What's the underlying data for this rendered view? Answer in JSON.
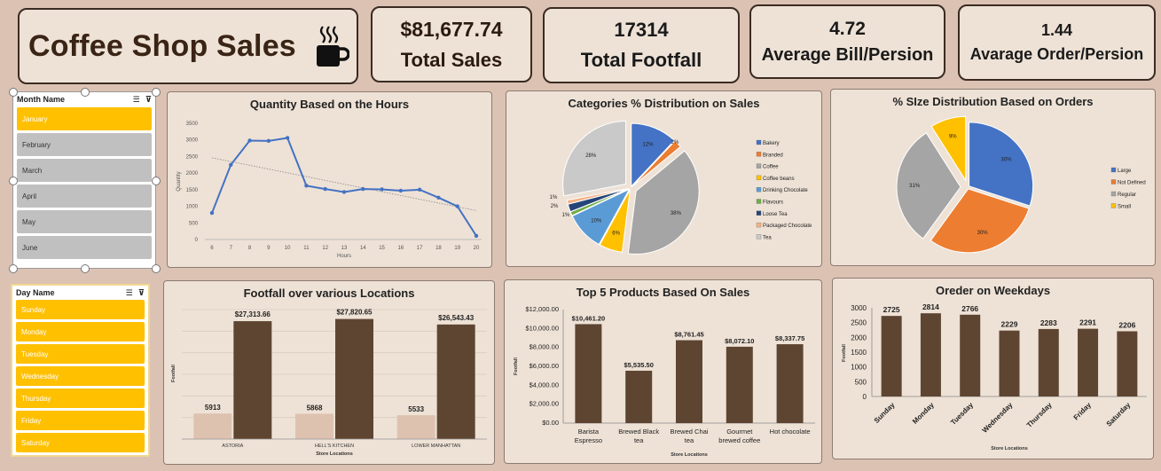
{
  "header": {
    "title": "Coffee Shop Sales",
    "icon": "coffee-cup-icon"
  },
  "kpis": [
    {
      "value": "$81,677.74",
      "label": "Total Sales"
    },
    {
      "value": "17314",
      "label": "Total Footfall"
    },
    {
      "value": "4.72",
      "label": "Average Bill/Persion"
    },
    {
      "value": "1.44",
      "label": "Avarage Order/Persion"
    }
  ],
  "month_slicer": {
    "title": "Month Name",
    "items": [
      "January",
      "February",
      "March",
      "April",
      "May",
      "June"
    ],
    "selected": [
      "January"
    ]
  },
  "day_slicer": {
    "title": "Day Name",
    "items": [
      "Sunday",
      "Monday",
      "Tuesday",
      "Wednesday",
      "Thursday",
      "Friday",
      "Saturday"
    ],
    "selected": [
      "Sunday",
      "Monday",
      "Tuesday",
      "Wednesday",
      "Thursday",
      "Friday",
      "Saturday"
    ]
  },
  "colors": {
    "brown": "#5e4532",
    "tan": "#dec2b0",
    "line": "#4472c4",
    "selected": "#ffc000",
    "unselected": "#c0c0c0",
    "panel": "#eee2d6"
  },
  "chart_data": [
    {
      "id": "hours",
      "type": "line",
      "title": "Quantity Based on the Hours",
      "xlabel": "Hours",
      "ylabel": "Quantity",
      "x": [
        6,
        7,
        8,
        9,
        10,
        11,
        12,
        13,
        14,
        15,
        16,
        17,
        18,
        19,
        20
      ],
      "values": [
        800,
        2250,
        2980,
        2970,
        3060,
        1620,
        1520,
        1430,
        1520,
        1510,
        1470,
        1500,
        1260,
        1000,
        110
      ],
      "ylim": [
        0,
        3500
      ],
      "yticks": [
        0,
        500,
        1000,
        1500,
        2000,
        2500,
        3000,
        3500
      ],
      "trendline": true
    },
    {
      "id": "categories",
      "type": "pie",
      "title": "Categories % Distribution on Sales",
      "labels": [
        "Bakery",
        "Branded",
        "Coffee",
        "Coffee beans",
        "Drinking Chocolate",
        "Flavours",
        "Loose Tea",
        "Packaged Chocolate",
        "Tea"
      ],
      "values": [
        12,
        2,
        38,
        6,
        10,
        1,
        2,
        1,
        28
      ],
      "value_labels": [
        "12%",
        "2%",
        "38%",
        "6%",
        "10%",
        "1%",
        "2%",
        "1%",
        "28%"
      ],
      "colors": [
        "#4472c4",
        "#ed7d31",
        "#a5a5a5",
        "#ffc000",
        "#5b9bd5",
        "#70ad47",
        "#264478",
        "#f4b183",
        "#c9c9c9"
      ],
      "legend": "right"
    },
    {
      "id": "sizes",
      "type": "pie",
      "title": "% SIze  Distribution Based on Orders",
      "labels": [
        "Large",
        "Not Defined",
        "Regular",
        "Small"
      ],
      "values": [
        30,
        30,
        31,
        9
      ],
      "value_labels": [
        "30%",
        "30%",
        "31%",
        "9%"
      ],
      "colors": [
        "#4472c4",
        "#ed7d31",
        "#a5a5a5",
        "#ffc000"
      ],
      "legend": "right"
    },
    {
      "id": "locations",
      "type": "bar",
      "title": "Footfall over various Locations",
      "xlabel": "Store Locations",
      "ylabel": "Footfall",
      "categories": [
        "ASTORIA",
        "HELL'S KITCHEN",
        "LOWER MANHATTAN"
      ],
      "series": [
        {
          "values": [
            5913,
            5868,
            5533
          ],
          "labels": [
            "5913",
            "5868",
            "5533"
          ]
        },
        {
          "values": [
            27313.66,
            27820.65,
            26543.43
          ],
          "labels": [
            "$27,313.66",
            "$27,820.65",
            "$26,543.43"
          ]
        }
      ],
      "ylim": [
        0,
        30000
      ],
      "grid": true
    },
    {
      "id": "products",
      "type": "bar",
      "title": "Top  5 Products Based On Sales",
      "xlabel": "Store Locations",
      "ylabel": "Footfall",
      "categories": [
        [
          "Barista",
          "Espresso"
        ],
        [
          "Brewed Black",
          "tea"
        ],
        [
          "Brewed Chai",
          "tea"
        ],
        [
          "Gourmet",
          "brewed coffee"
        ],
        [
          "Hot chocolate"
        ]
      ],
      "values": [
        10461.2,
        5535.5,
        8761.45,
        8072.1,
        8337.75
      ],
      "value_labels": [
        "$10,461.20",
        "$5,535.50",
        "$8,761.45",
        "$8,072.10",
        "$8,337.75"
      ],
      "ylim": [
        0,
        12000
      ],
      "ytick_labels": [
        "$0.00",
        "$2,000.00",
        "$4,000.00",
        "$6,000.00",
        "$8,000.00",
        "$10,000.00",
        "$12,000.00"
      ]
    },
    {
      "id": "weekdays",
      "type": "bar",
      "title": "Oreder on Weekdays",
      "xlabel": "Store Locations",
      "ylabel": "Footfall",
      "categories": [
        "Sunday",
        "Monday",
        "Tuesday",
        "Wednesday",
        "Thursday",
        "Friday",
        "Saturday"
      ],
      "values": [
        2725,
        2814,
        2766,
        2229,
        2283,
        2291,
        2206
      ],
      "ylim": [
        0,
        3000
      ],
      "yticks": [
        0,
        500,
        1000,
        1500,
        2000,
        2500,
        3000
      ]
    }
  ]
}
